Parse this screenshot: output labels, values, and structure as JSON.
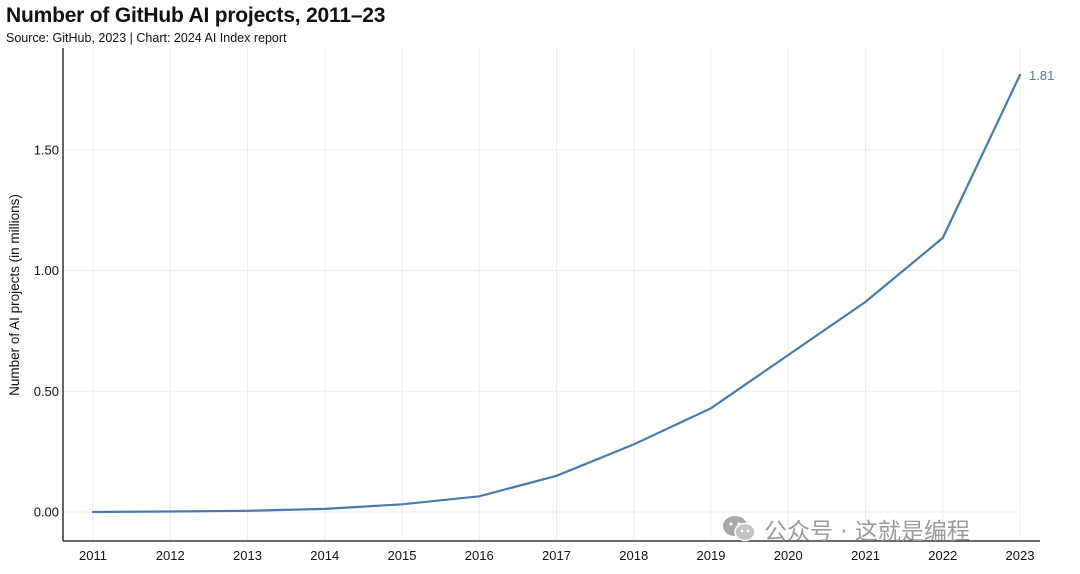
{
  "header": {
    "title": "Number of GitHub AI projects, 2011–23",
    "subtitle": "Source: GitHub, 2023 | Chart: 2024 AI Index report"
  },
  "watermark": {
    "text": "公众号 · 这就是编程",
    "icon": "wechat-icon"
  },
  "colors": {
    "line": "#4a79ab",
    "grid": "#ececec",
    "axis": "#111111"
  },
  "chart_data": {
    "type": "line",
    "title": "Number of GitHub AI projects, 2011–23",
    "xlabel": "",
    "ylabel": "Number of AI projects (in millions)",
    "x": [
      2011,
      2012,
      2013,
      2014,
      2015,
      2016,
      2017,
      2018,
      2019,
      2020,
      2021,
      2022,
      2023
    ],
    "ylim": [
      0,
      1.81
    ],
    "yticks": [
      "0.00",
      "0.50",
      "1.00",
      "1.50"
    ],
    "grid": true,
    "series": [
      {
        "values": [
          0.0,
          0.002,
          0.005,
          0.013,
          0.032,
          0.065,
          0.15,
          0.28,
          0.43,
          0.65,
          0.87,
          1.135,
          1.81
        ]
      }
    ],
    "annotations": [
      {
        "x": 2023,
        "label": "1.81"
      }
    ]
  }
}
